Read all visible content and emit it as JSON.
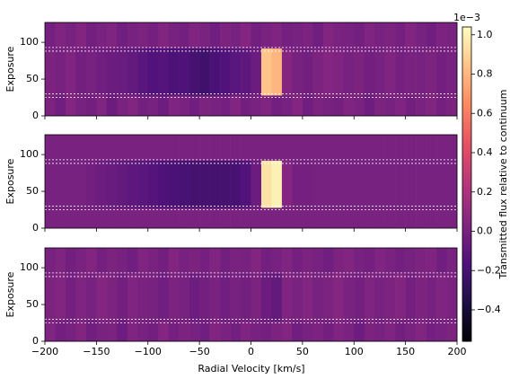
{
  "chart_data": {
    "type": "heatmap",
    "xlabel": "Radial Velocity [km/s]",
    "xlim": [
      -200,
      200
    ],
    "xticks": [
      {
        "value": -200,
        "label": "−200"
      },
      {
        "value": -150,
        "label": "−150"
      },
      {
        "value": -100,
        "label": "−100"
      },
      {
        "value": -50,
        "label": "−50"
      },
      0,
      50,
      100,
      150,
      200
    ],
    "x_edges": [
      -200,
      -190,
      -180,
      -170,
      -160,
      -150,
      -140,
      -130,
      -120,
      -110,
      -100,
      -90,
      -80,
      -70,
      -60,
      -50,
      -40,
      -30,
      -20,
      -10,
      0,
      10,
      20,
      30,
      40,
      50,
      60,
      70,
      80,
      90,
      100,
      110,
      120,
      130,
      140,
      150,
      160,
      170,
      180,
      190,
      200
    ],
    "hlines": [
      25,
      30,
      88,
      93
    ],
    "panels": [
      {
        "ylabel": "Exposure",
        "ylim": [
          0,
          127
        ],
        "yticks": [
          0,
          50,
          100
        ],
        "y_edges": [
          0,
          28,
          92,
          127
        ],
        "values": [
          [
            0.02,
            -0.03,
            0.05,
            0.0,
            -0.02,
            0.03,
            -0.05,
            0.01,
            0.04,
            -0.02,
            0.0,
            -0.04,
            0.03,
            0.01,
            -0.03,
            0.02,
            0.0,
            -0.01,
            0.04,
            -0.02,
            0.01,
            0.03,
            -0.02,
            0.0,
            0.05,
            -0.03,
            0.02,
            0.0,
            -0.01,
            0.03,
            0.01,
            -0.04,
            0.02,
            0.0,
            0.03,
            -0.02,
            0.01,
            0.04,
            -0.01,
            0.02
          ],
          [
            0.02,
            0.0,
            0.03,
            -0.02,
            0.0,
            -0.03,
            -0.05,
            -0.06,
            -0.08,
            -0.12,
            -0.15,
            -0.14,
            -0.17,
            -0.16,
            -0.2,
            -0.22,
            -0.18,
            -0.15,
            -0.12,
            -0.1,
            -0.05,
            0.85,
            0.8,
            0.05,
            0.0,
            -0.02,
            0.02,
            0.05,
            0.03,
            0.0,
            0.02,
            -0.02,
            0.0,
            0.03,
            -0.01,
            0.01,
            0.0,
            0.02,
            -0.02,
            0.0
          ],
          [
            -0.01,
            0.03,
            0.0,
            0.04,
            -0.02,
            0.01,
            0.03,
            -0.03,
            0.0,
            0.02,
            -0.01,
            0.04,
            0.0,
            -0.02,
            0.03,
            0.01,
            -0.03,
            0.02,
            0.0,
            0.05,
            -0.02,
            0.01,
            0.03,
            -0.01,
            0.0,
            0.02,
            -0.03,
            0.04,
            0.01,
            0.0,
            -0.02,
            0.03,
            0.0,
            0.02,
            -0.01,
            0.04,
            0.0,
            -0.03,
            0.02,
            0.01
          ]
        ]
      },
      {
        "ylabel": "Exposure",
        "ylim": [
          0,
          127
        ],
        "yticks": [
          0,
          50,
          100
        ],
        "y_edges": [
          0,
          28,
          92,
          127
        ],
        "values": [
          [
            0.01,
            0.01,
            0.01,
            0.01,
            0.01,
            0.01,
            0.01,
            0.01,
            0.01,
            0.01,
            0.01,
            0.01,
            0.01,
            0.01,
            0.01,
            0.01,
            0.01,
            0.01,
            0.01,
            0.01,
            0.01,
            0.01,
            0.01,
            0.01,
            0.01,
            0.01,
            0.01,
            0.01,
            0.01,
            0.01,
            0.01,
            0.01,
            0.01,
            0.01,
            0.01,
            0.01,
            0.01,
            0.01,
            0.01,
            0.01
          ],
          [
            0.0,
            0.0,
            0.0,
            0.0,
            -0.02,
            -0.04,
            -0.06,
            -0.08,
            -0.1,
            -0.12,
            -0.14,
            -0.16,
            -0.18,
            -0.19,
            -0.2,
            -0.2,
            -0.2,
            -0.2,
            -0.19,
            -0.15,
            -0.05,
            0.95,
            1.0,
            0.05,
            -0.01,
            -0.01,
            0.0,
            0.0,
            0.0,
            0.0,
            0.0,
            0.0,
            0.0,
            0.0,
            0.0,
            0.0,
            0.0,
            0.0,
            0.0,
            0.0
          ],
          [
            0.01,
            0.01,
            0.01,
            0.01,
            0.01,
            0.01,
            0.01,
            0.01,
            0.01,
            0.01,
            0.01,
            0.01,
            0.01,
            0.01,
            0.01,
            0.01,
            0.01,
            0.01,
            0.01,
            0.01,
            0.01,
            0.01,
            0.01,
            0.01,
            0.01,
            0.01,
            0.01,
            0.01,
            0.01,
            0.01,
            0.01,
            0.01,
            0.01,
            0.01,
            0.01,
            0.01,
            0.01,
            0.01,
            0.01,
            0.01
          ]
        ]
      },
      {
        "ylabel": "Exposure",
        "ylim": [
          0,
          127
        ],
        "yticks": [
          0,
          50,
          100
        ],
        "y_edges": [
          0,
          28,
          92,
          127
        ],
        "values": [
          [
            0.03,
            -0.02,
            0.0,
            0.04,
            -0.03,
            0.01,
            0.02,
            -0.04,
            0.03,
            0.0,
            -0.02,
            0.05,
            -0.01,
            0.02,
            0.0,
            -0.03,
            0.04,
            0.01,
            -0.02,
            0.03,
            0.0,
            -0.01,
            0.02,
            0.04,
            -0.03,
            0.0,
            0.02,
            -0.02,
            0.03,
            0.01,
            -0.04,
            0.02,
            0.0,
            0.03,
            -0.02,
            0.01,
            0.04,
            -0.01,
            0.0,
            0.02
          ],
          [
            0.02,
            0.04,
            -0.01,
            0.03,
            0.0,
            0.05,
            0.02,
            -0.02,
            0.03,
            0.01,
            0.0,
            -0.03,
            0.02,
            0.0,
            -0.04,
            -0.02,
            0.01,
            -0.03,
            0.0,
            -0.02,
            0.02,
            -0.05,
            -0.08,
            0.03,
            0.01,
            0.04,
            0.0,
            0.02,
            0.05,
            0.01,
            -0.01,
            0.03,
            0.0,
            0.02,
            0.04,
            -0.01,
            0.02,
            0.0,
            0.03,
            0.01
          ],
          [
            0.0,
            0.03,
            -0.02,
            0.01,
            0.04,
            -0.01,
            0.02,
            0.0,
            -0.03,
            0.03,
            0.01,
            -0.02,
            0.04,
            0.0,
            0.02,
            -0.01,
            0.03,
            -0.02,
            0.01,
            0.0,
            0.04,
            -0.02,
            0.0,
            0.03,
            -0.01,
            0.02,
            0.0,
            -0.03,
            0.02,
            0.04,
            0.0,
            -0.01,
            0.03,
            0.01,
            -0.02,
            0.0,
            0.02,
            0.03,
            -0.03,
            0.01
          ]
        ]
      }
    ],
    "colorbar": {
      "label": "Transmitted flux relative to continuum",
      "offset_label": "1e−3",
      "colormap": "magma",
      "clim": [
        -0.56,
        1.04
      ],
      "ticks": [
        {
          "value": -0.4,
          "label": "−0.4"
        },
        {
          "value": -0.2,
          "label": "−0.2"
        },
        {
          "value": 0,
          "label": "0.0"
        },
        0.2,
        0.4,
        0.6,
        0.8,
        {
          "value": 1,
          "label": "1.0"
        }
      ]
    }
  }
}
